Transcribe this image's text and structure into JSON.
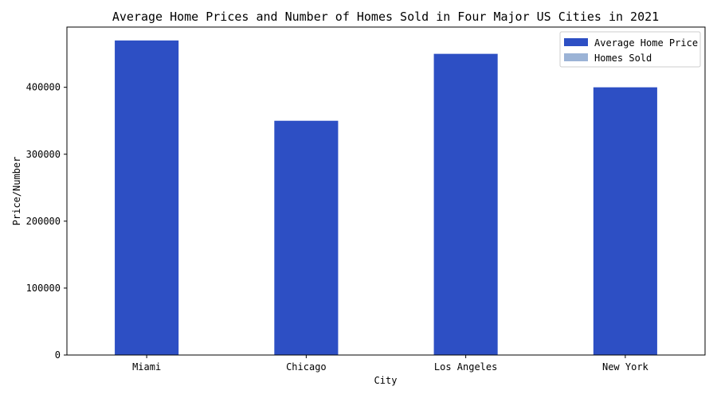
{
  "chart_data": {
    "type": "bar",
    "title": "Average Home Prices and Number of Homes Sold in Four Major US Cities in 2021",
    "xlabel": "City",
    "ylabel": "Price/Number",
    "categories": [
      "Miami",
      "Chicago",
      "Los Angeles",
      "New York"
    ],
    "series": [
      {
        "name": "Average Home Price",
        "color": "#2d4fc4",
        "values": [
          470000,
          350000,
          450000,
          400000
        ]
      },
      {
        "name": "Homes Sold",
        "color": "#9bb3d6",
        "values": [
          null,
          null,
          null,
          null
        ]
      }
    ],
    "ylim": [
      0,
      490000
    ],
    "yticks": [
      0,
      100000,
      200000,
      300000,
      400000
    ],
    "ytick_labels": [
      "0",
      "100000",
      "200000",
      "300000",
      "400000"
    ],
    "grid": false,
    "legend_position": "top-right"
  }
}
